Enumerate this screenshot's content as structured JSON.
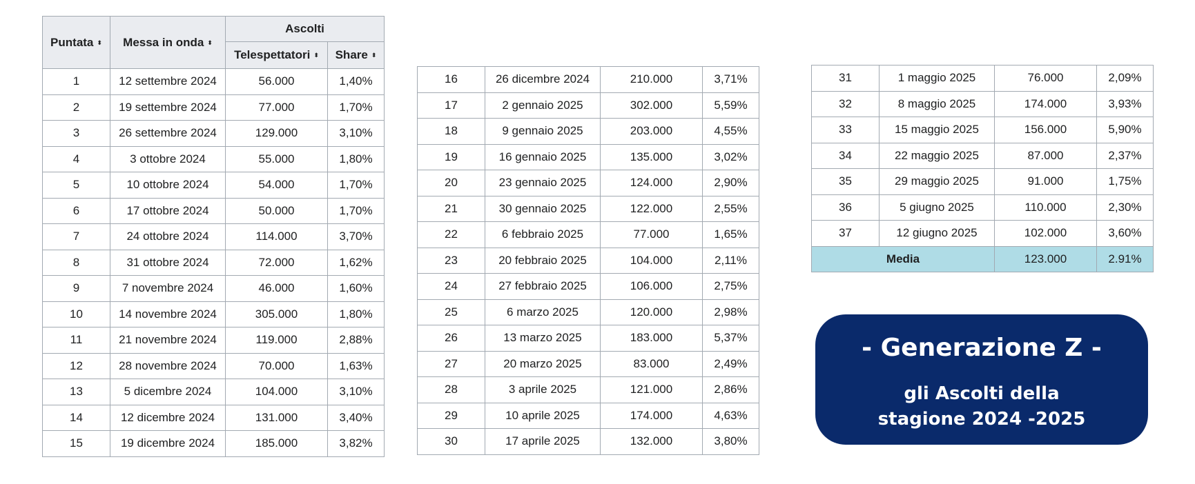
{
  "headers": {
    "puntata": "Puntata",
    "messa_in_onda": "Messa in onda",
    "ascolti": "Ascolti",
    "telespettatori": "Telespettatori",
    "share": "Share",
    "sort_icon": "⬍"
  },
  "table1": [
    {
      "n": "1",
      "date": "12 settembre 2024",
      "viewers": "56.000",
      "share": "1,40%"
    },
    {
      "n": "2",
      "date": "19 settembre 2024",
      "viewers": "77.000",
      "share": "1,70%"
    },
    {
      "n": "3",
      "date": "26 settembre 2024",
      "viewers": "129.000",
      "share": "3,10%"
    },
    {
      "n": "4",
      "date": "3 ottobre 2024",
      "viewers": "55.000",
      "share": "1,80%"
    },
    {
      "n": "5",
      "date": "10 ottobre 2024",
      "viewers": "54.000",
      "share": "1,70%"
    },
    {
      "n": "6",
      "date": "17 ottobre 2024",
      "viewers": "50.000",
      "share": "1,70%"
    },
    {
      "n": "7",
      "date": "24 ottobre 2024",
      "viewers": "114.000",
      "share": "3,70%"
    },
    {
      "n": "8",
      "date": "31 ottobre 2024",
      "viewers": "72.000",
      "share": "1,62%"
    },
    {
      "n": "9",
      "date": "7 novembre 2024",
      "viewers": "46.000",
      "share": "1,60%"
    },
    {
      "n": "10",
      "date": "14 novembre 2024",
      "viewers": "305.000",
      "share": "1,80%"
    },
    {
      "n": "11",
      "date": "21 novembre 2024",
      "viewers": "119.000",
      "share": "2,88%"
    },
    {
      "n": "12",
      "date": "28 novembre 2024",
      "viewers": "70.000",
      "share": "1,63%"
    },
    {
      "n": "13",
      "date": "5 dicembre 2024",
      "viewers": "104.000",
      "share": "3,10%"
    },
    {
      "n": "14",
      "date": "12 dicembre 2024",
      "viewers": "131.000",
      "share": "3,40%"
    },
    {
      "n": "15",
      "date": "19 dicembre 2024",
      "viewers": "185.000",
      "share": "3,82%"
    }
  ],
  "table2": [
    {
      "n": "16",
      "date": "26 dicembre 2024",
      "viewers": "210.000",
      "share": "3,71%"
    },
    {
      "n": "17",
      "date": "2 gennaio 2025",
      "viewers": "302.000",
      "share": "5,59%"
    },
    {
      "n": "18",
      "date": "9 gennaio 2025",
      "viewers": "203.000",
      "share": "4,55%"
    },
    {
      "n": "19",
      "date": "16 gennaio 2025",
      "viewers": "135.000",
      "share": "3,02%"
    },
    {
      "n": "20",
      "date": "23 gennaio 2025",
      "viewers": "124.000",
      "share": "2,90%"
    },
    {
      "n": "21",
      "date": "30 gennaio 2025",
      "viewers": "122.000",
      "share": "2,55%"
    },
    {
      "n": "22",
      "date": "6 febbraio 2025",
      "viewers": "77.000",
      "share": "1,65%"
    },
    {
      "n": "23",
      "date": "20 febbraio 2025",
      "viewers": "104.000",
      "share": "2,11%"
    },
    {
      "n": "24",
      "date": "27 febbraio 2025",
      "viewers": "106.000",
      "share": "2,75%"
    },
    {
      "n": "25",
      "date": "6 marzo 2025",
      "viewers": "120.000",
      "share": "2,98%"
    },
    {
      "n": "26",
      "date": "13 marzo 2025",
      "viewers": "183.000",
      "share": "5,37%"
    },
    {
      "n": "27",
      "date": "20 marzo 2025",
      "viewers": "83.000",
      "share": "2,49%"
    },
    {
      "n": "28",
      "date": "3 aprile 2025",
      "viewers": "121.000",
      "share": "2,86%"
    },
    {
      "n": "29",
      "date": "10 aprile 2025",
      "viewers": "174.000",
      "share": "4,63%"
    },
    {
      "n": "30",
      "date": "17 aprile 2025",
      "viewers": "132.000",
      "share": "3,80%"
    }
  ],
  "table3": [
    {
      "n": "31",
      "date": "1 maggio 2025",
      "viewers": "76.000",
      "share": "2,09%"
    },
    {
      "n": "32",
      "date": "8 maggio 2025",
      "viewers": "174.000",
      "share": "3,93%"
    },
    {
      "n": "33",
      "date": "15 maggio 2025",
      "viewers": "156.000",
      "share": "5,90%"
    },
    {
      "n": "34",
      "date": "22 maggio 2025",
      "viewers": "87.000",
      "share": "2,37%"
    },
    {
      "n": "35",
      "date": "29 maggio 2025",
      "viewers": "91.000",
      "share": "1,75%"
    },
    {
      "n": "36",
      "date": "5 giugno 2025",
      "viewers": "110.000",
      "share": "2,30%"
    },
    {
      "n": "37",
      "date": "12 giugno 2025",
      "viewers": "102.000",
      "share": "3,60%"
    }
  ],
  "average": {
    "label": "Media",
    "viewers": "123.000",
    "share": "2.91%"
  },
  "banner": {
    "title": "- Generazione Z -",
    "subtitle_line1": "gli Ascolti della",
    "subtitle_line2": "stagione 2024 -2025"
  },
  "colors": {
    "header_bg": "#eaecf0",
    "border": "#a2a9b1",
    "average_row_bg": "#afdce6",
    "banner_bg": "#0a2a6b",
    "banner_text": "#ffffff"
  }
}
